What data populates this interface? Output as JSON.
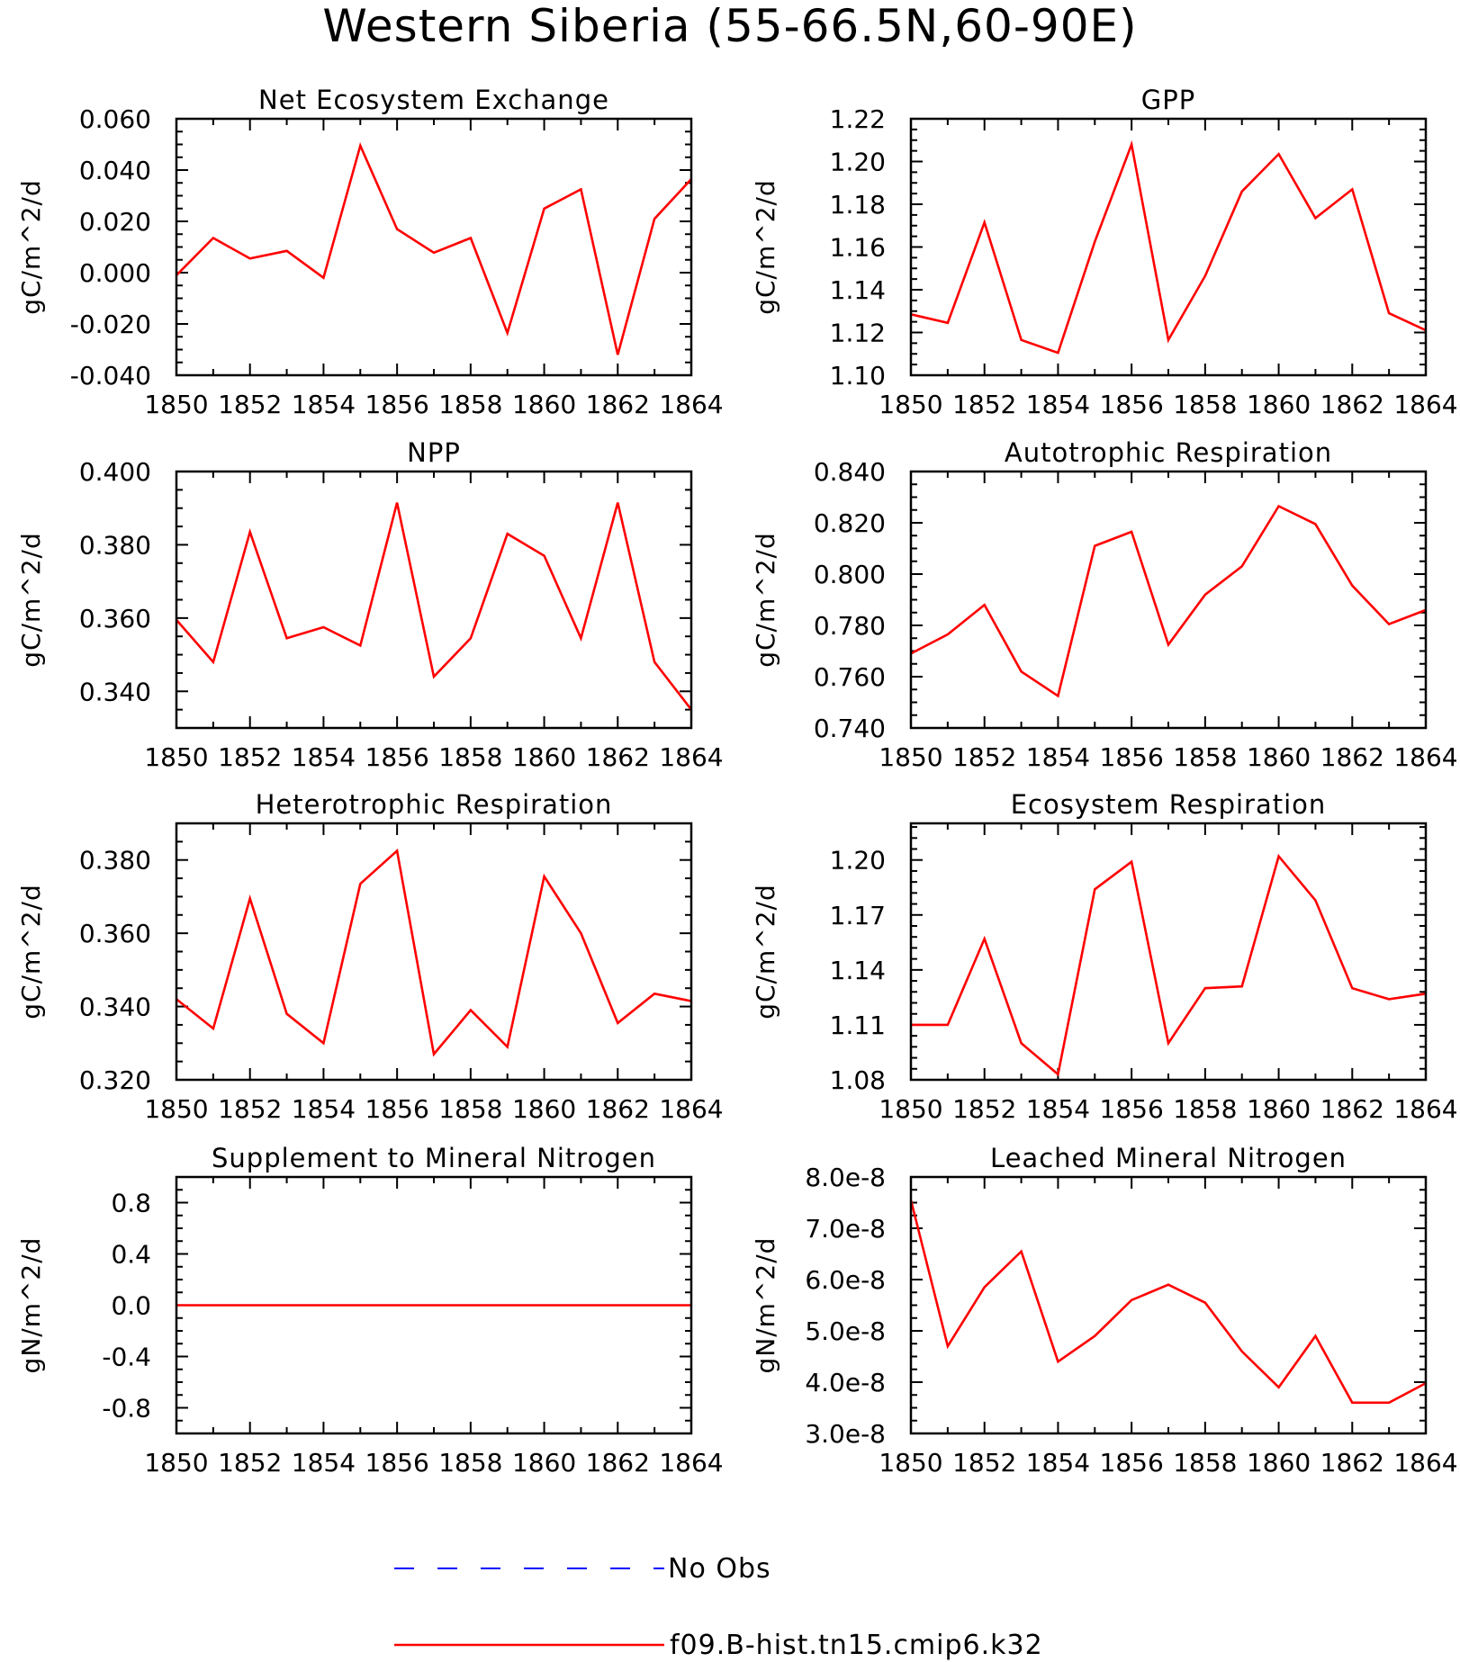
{
  "title": "Western Siberia (55-66.5N,60-90E)",
  "legend": {
    "items": [
      {
        "label": "No Obs",
        "color": "#0000ff",
        "dashed": true
      },
      {
        "label": "f09.B-hist.tn15.cmip6.k32",
        "color": "#ff0000",
        "dashed": false
      }
    ]
  },
  "series_color": "#ff0000",
  "chart_data": [
    {
      "type": "line",
      "title": "Net Ecosystem Exchange",
      "ylabel": "gC/m^2/d",
      "x": [
        1850,
        1851,
        1852,
        1853,
        1854,
        1855,
        1856,
        1857,
        1858,
        1859,
        1860,
        1861,
        1862,
        1863,
        1864
      ],
      "values": [
        -0.001,
        0.0135,
        0.0055,
        0.0085,
        -0.002,
        0.0495,
        0.017,
        0.0078,
        0.0135,
        -0.0235,
        0.025,
        0.0325,
        -0.032,
        0.021,
        0.0365
      ],
      "xlim": [
        1850,
        1864
      ],
      "ylim": [
        -0.04,
        0.06
      ],
      "xticks": [
        1850,
        1852,
        1854,
        1856,
        1858,
        1860,
        1862,
        1864
      ],
      "yticks": [
        -0.04,
        -0.02,
        0.0,
        0.02,
        0.04,
        0.06
      ],
      "ytick_labels": [
        "-0.040",
        "-0.020",
        "0.000",
        "0.020",
        "0.040",
        "0.060"
      ],
      "yminor": 4
    },
    {
      "type": "line",
      "title": "GPP",
      "ylabel": "gC/m^2/d",
      "x": [
        1850,
        1851,
        1852,
        1853,
        1854,
        1855,
        1856,
        1857,
        1858,
        1859,
        1860,
        1861,
        1862,
        1863,
        1864
      ],
      "values": [
        1.1285,
        1.1245,
        1.1715,
        1.1165,
        1.1105,
        1.1625,
        1.208,
        1.1165,
        1.1465,
        1.186,
        1.2035,
        1.1735,
        1.187,
        1.129,
        1.121
      ],
      "xlim": [
        1850,
        1864
      ],
      "ylim": [
        1.1,
        1.22
      ],
      "xticks": [
        1850,
        1852,
        1854,
        1856,
        1858,
        1860,
        1862,
        1864
      ],
      "yticks": [
        1.1,
        1.12,
        1.14,
        1.16,
        1.18,
        1.2,
        1.22
      ],
      "ytick_labels": [
        "1.10",
        "1.12",
        "1.14",
        "1.16",
        "1.18",
        "1.20",
        "1.22"
      ],
      "yminor": 4
    },
    {
      "type": "line",
      "title": "NPP",
      "ylabel": "gC/m^2/d",
      "x": [
        1850,
        1851,
        1852,
        1853,
        1854,
        1855,
        1856,
        1857,
        1858,
        1859,
        1860,
        1861,
        1862,
        1863,
        1864
      ],
      "values": [
        0.3595,
        0.348,
        0.3835,
        0.3545,
        0.3575,
        0.3525,
        0.3915,
        0.344,
        0.3545,
        0.383,
        0.377,
        0.3545,
        0.3915,
        0.348,
        0.335
      ],
      "xlim": [
        1850,
        1864
      ],
      "ylim": [
        0.33,
        0.4
      ],
      "xticks": [
        1850,
        1852,
        1854,
        1856,
        1858,
        1860,
        1862,
        1864
      ],
      "yticks": [
        0.34,
        0.36,
        0.38,
        0.4
      ],
      "ytick_labels": [
        "0.340",
        "0.360",
        "0.380",
        "0.400"
      ],
      "yminor": 4
    },
    {
      "type": "line",
      "title": "Autotrophic Respiration",
      "ylabel": "gC/m^2/d",
      "x": [
        1850,
        1851,
        1852,
        1853,
        1854,
        1855,
        1856,
        1857,
        1858,
        1859,
        1860,
        1861,
        1862,
        1863,
        1864
      ],
      "values": [
        0.769,
        0.7765,
        0.788,
        0.762,
        0.7525,
        0.811,
        0.8165,
        0.7725,
        0.792,
        0.803,
        0.8265,
        0.8195,
        0.7955,
        0.7805,
        0.786
      ],
      "xlim": [
        1850,
        1864
      ],
      "ylim": [
        0.74,
        0.84
      ],
      "xticks": [
        1850,
        1852,
        1854,
        1856,
        1858,
        1860,
        1862,
        1864
      ],
      "yticks": [
        0.74,
        0.76,
        0.78,
        0.8,
        0.82,
        0.84
      ],
      "ytick_labels": [
        "0.740",
        "0.760",
        "0.780",
        "0.800",
        "0.820",
        "0.840"
      ],
      "yminor": 4
    },
    {
      "type": "line",
      "title": "Heterotrophic Respiration",
      "ylabel": "gC/m^2/d",
      "x": [
        1850,
        1851,
        1852,
        1853,
        1854,
        1855,
        1856,
        1857,
        1858,
        1859,
        1860,
        1861,
        1862,
        1863,
        1864
      ],
      "values": [
        0.342,
        0.334,
        0.3695,
        0.338,
        0.33,
        0.3735,
        0.3825,
        0.327,
        0.339,
        0.329,
        0.3755,
        0.36,
        0.3355,
        0.3435,
        0.3415
      ],
      "xlim": [
        1850,
        1864
      ],
      "ylim": [
        0.32,
        0.39
      ],
      "xticks": [
        1850,
        1852,
        1854,
        1856,
        1858,
        1860,
        1862,
        1864
      ],
      "yticks": [
        0.32,
        0.34,
        0.36,
        0.38
      ],
      "ytick_labels": [
        "0.320",
        "0.340",
        "0.360",
        "0.380"
      ],
      "yminor": 4
    },
    {
      "type": "line",
      "title": "Ecosystem Respiration",
      "ylabel": "gC/m^2/d",
      "x": [
        1850,
        1851,
        1852,
        1853,
        1854,
        1855,
        1856,
        1857,
        1858,
        1859,
        1860,
        1861,
        1862,
        1863,
        1864
      ],
      "values": [
        1.11,
        1.11,
        1.157,
        1.1,
        1.083,
        1.184,
        1.199,
        1.1,
        1.13,
        1.131,
        1.202,
        1.178,
        1.13,
        1.124,
        1.127
      ],
      "xlim": [
        1850,
        1864
      ],
      "ylim": [
        1.08,
        1.22
      ],
      "xticks": [
        1850,
        1852,
        1854,
        1856,
        1858,
        1860,
        1862,
        1864
      ],
      "yticks": [
        1.08,
        1.11,
        1.14,
        1.17,
        1.2
      ],
      "ytick_labels": [
        "1.08",
        "1.11",
        "1.14",
        "1.17",
        "1.20"
      ],
      "yminor": 5
    },
    {
      "type": "line",
      "title": "Supplement to Mineral Nitrogen",
      "ylabel": "gN/m^2/d",
      "x": [
        1850,
        1851,
        1852,
        1853,
        1854,
        1855,
        1856,
        1857,
        1858,
        1859,
        1860,
        1861,
        1862,
        1863,
        1864
      ],
      "values": [
        0,
        0,
        0,
        0,
        0,
        0,
        0,
        0,
        0,
        0,
        0,
        0,
        0,
        0,
        0
      ],
      "xlim": [
        1850,
        1864
      ],
      "ylim": [
        -1.0,
        1.0
      ],
      "xticks": [
        1850,
        1852,
        1854,
        1856,
        1858,
        1860,
        1862,
        1864
      ],
      "yticks": [
        -0.8,
        -0.4,
        0.0,
        0.4,
        0.8
      ],
      "ytick_labels": [
        "-0.8",
        "-0.4",
        "0.0",
        "0.4",
        "0.8"
      ],
      "yminor": 4
    },
    {
      "type": "line",
      "title": "Leached Mineral Nitrogen",
      "ylabel": "gN/m^2/d",
      "x": [
        1850,
        1851,
        1852,
        1853,
        1854,
        1855,
        1856,
        1857,
        1858,
        1859,
        1860,
        1861,
        1862,
        1863,
        1864
      ],
      "values": [
        7.55e-08,
        4.7e-08,
        5.85e-08,
        6.55e-08,
        4.4e-08,
        4.9e-08,
        5.6e-08,
        5.9e-08,
        5.55e-08,
        4.6e-08,
        3.9e-08,
        4.9e-08,
        3.6e-08,
        3.6e-08,
        3.98e-08
      ],
      "xlim": [
        1850,
        1864
      ],
      "ylim": [
        3e-08,
        8e-08
      ],
      "xticks": [
        1850,
        1852,
        1854,
        1856,
        1858,
        1860,
        1862,
        1864
      ],
      "yticks": [
        3e-08,
        4e-08,
        5e-08,
        6e-08,
        7e-08,
        8e-08
      ],
      "ytick_labels": [
        "3.0e-8",
        "4.0e-8",
        "5.0e-8",
        "6.0e-8",
        "7.0e-8",
        "8.0e-8"
      ],
      "yminor": 4
    }
  ]
}
